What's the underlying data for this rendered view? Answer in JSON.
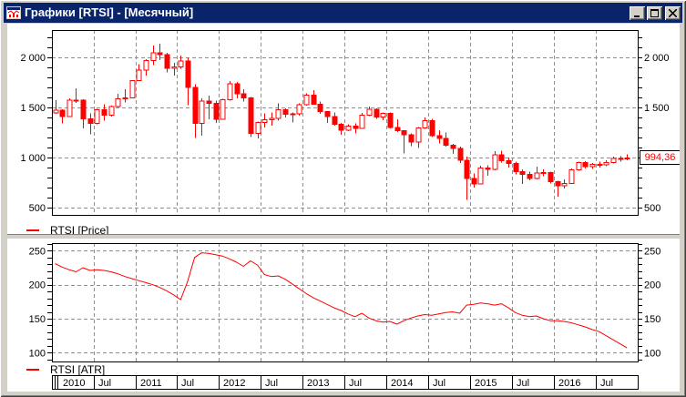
{
  "window": {
    "title": "Графики [RTSI] - [Месячный]"
  },
  "ui": {
    "price_legend": "RTSI [Price]",
    "atr_legend": "RTSI [ATR]",
    "price_tag": "994,36"
  },
  "colors": {
    "title_bar": "#0a246a",
    "chrome": "#d4d0c8",
    "series_red": "#ff0000",
    "grid_grey": "#909090",
    "axis_black": "#000000",
    "plot_background": "#ffffff"
  },
  "axes": {
    "price_left_labels": [
      {
        "v": 2000,
        "t": "2 000"
      },
      {
        "v": 1500,
        "t": "1 500"
      },
      {
        "v": 1000,
        "t": "1 000"
      },
      {
        "v": 500,
        "t": "500"
      }
    ],
    "price_right_labels": [
      {
        "v": 2000,
        "t": "2 000"
      },
      {
        "v": 1500,
        "t": "1 500"
      },
      {
        "v": 500,
        "t": "500"
      }
    ],
    "atr_labels": [
      {
        "v": 250,
        "t": "250"
      },
      {
        "v": 200,
        "t": "200"
      },
      {
        "v": 150,
        "t": "150"
      },
      {
        "v": 100,
        "t": "100"
      }
    ],
    "x_labels": [
      "2010",
      "Jul",
      "2011",
      "Jul",
      "2012",
      "Jul",
      "2013",
      "Jul",
      "2014",
      "Jul",
      "2015",
      "Jul",
      "2016",
      "Jul"
    ]
  },
  "chart_data": [
    {
      "type": "candlestick",
      "title": "RTSI [Price]",
      "interval": "monthly",
      "ylim": [
        430,
        2275
      ],
      "y_gridlines": [
        500,
        1000,
        1500,
        2000
      ],
      "x_gridlines_every_months": 6,
      "last_price": 994.36,
      "columns": [
        "month",
        "open",
        "high",
        "low",
        "close"
      ],
      "rows": [
        [
          "2010-01",
          1445,
          1575,
          1435,
          1474
        ],
        [
          "2010-02",
          1474,
          1480,
          1340,
          1410
        ],
        [
          "2010-03",
          1410,
          1590,
          1405,
          1572
        ],
        [
          "2010-04",
          1572,
          1690,
          1545,
          1573
        ],
        [
          "2010-05",
          1573,
          1580,
          1290,
          1385
        ],
        [
          "2010-06",
          1385,
          1440,
          1230,
          1339
        ],
        [
          "2010-07",
          1339,
          1485,
          1330,
          1479
        ],
        [
          "2010-08",
          1479,
          1530,
          1370,
          1421
        ],
        [
          "2010-09",
          1421,
          1520,
          1410,
          1507
        ],
        [
          "2010-10",
          1507,
          1635,
          1500,
          1587
        ],
        [
          "2010-11",
          1587,
          1680,
          1550,
          1597
        ],
        [
          "2010-12",
          1597,
          1775,
          1590,
          1770
        ],
        [
          "2011-01",
          1770,
          1930,
          1765,
          1871
        ],
        [
          "2011-02",
          1871,
          1980,
          1820,
          1969
        ],
        [
          "2011-03",
          1969,
          2120,
          1925,
          2044
        ],
        [
          "2011-04",
          2044,
          2135,
          1975,
          2027
        ],
        [
          "2011-05",
          2027,
          2045,
          1850,
          1889
        ],
        [
          "2011-06",
          1889,
          1945,
          1820,
          1906
        ],
        [
          "2011-07",
          1906,
          2020,
          1885,
          1965
        ],
        [
          "2011-08",
          1965,
          1995,
          1525,
          1702
        ],
        [
          "2011-09",
          1702,
          1730,
          1195,
          1341
        ],
        [
          "2011-10",
          1341,
          1590,
          1217,
          1563
        ],
        [
          "2011-11",
          1563,
          1620,
          1380,
          1540
        ],
        [
          "2011-12",
          1540,
          1570,
          1345,
          1382
        ],
        [
          "2012-01",
          1382,
          1585,
          1380,
          1577
        ],
        [
          "2012-02",
          1577,
          1765,
          1570,
          1735
        ],
        [
          "2012-03",
          1735,
          1754,
          1590,
          1637
        ],
        [
          "2012-04",
          1637,
          1680,
          1560,
          1594
        ],
        [
          "2012-05",
          1594,
          1605,
          1206,
          1242
        ],
        [
          "2012-06",
          1242,
          1360,
          1190,
          1351
        ],
        [
          "2012-07",
          1351,
          1440,
          1300,
          1377
        ],
        [
          "2012-08",
          1377,
          1450,
          1320,
          1390
        ],
        [
          "2012-09",
          1390,
          1540,
          1370,
          1476
        ],
        [
          "2012-10",
          1476,
          1490,
          1400,
          1433
        ],
        [
          "2012-11",
          1433,
          1450,
          1350,
          1437
        ],
        [
          "2012-12",
          1437,
          1540,
          1420,
          1527
        ],
        [
          "2013-01",
          1527,
          1640,
          1520,
          1622
        ],
        [
          "2013-02",
          1622,
          1675,
          1530,
          1534
        ],
        [
          "2013-03",
          1534,
          1560,
          1435,
          1460
        ],
        [
          "2013-04",
          1460,
          1465,
          1345,
          1407
        ],
        [
          "2013-05",
          1407,
          1450,
          1320,
          1331
        ],
        [
          "2013-06",
          1331,
          1345,
          1227,
          1275
        ],
        [
          "2013-07",
          1275,
          1330,
          1265,
          1313
        ],
        [
          "2013-08",
          1313,
          1340,
          1241,
          1291
        ],
        [
          "2013-09",
          1291,
          1445,
          1285,
          1422
        ],
        [
          "2013-10",
          1422,
          1510,
          1415,
          1481
        ],
        [
          "2013-11",
          1481,
          1490,
          1385,
          1403
        ],
        [
          "2013-12",
          1403,
          1450,
          1375,
          1443
        ],
        [
          "2014-01",
          1443,
          1450,
          1290,
          1301
        ],
        [
          "2014-02",
          1301,
          1380,
          1255,
          1267
        ],
        [
          "2014-03",
          1267,
          1275,
          1040,
          1226
        ],
        [
          "2014-04",
          1226,
          1240,
          1115,
          1156
        ],
        [
          "2014-05",
          1156,
          1305,
          1095,
          1296
        ],
        [
          "2014-06",
          1296,
          1400,
          1285,
          1366
        ],
        [
          "2014-07",
          1366,
          1385,
          1205,
          1219
        ],
        [
          "2014-08",
          1219,
          1275,
          1140,
          1190
        ],
        [
          "2014-09",
          1190,
          1250,
          1110,
          1124
        ],
        [
          "2014-10",
          1124,
          1135,
          1035,
          1091
        ],
        [
          "2014-11",
          1091,
          1110,
          945,
          974
        ],
        [
          "2014-12",
          974,
          1010,
          578,
          791
        ],
        [
          "2015-01",
          791,
          840,
          700,
          737
        ],
        [
          "2015-02",
          737,
          920,
          730,
          897
        ],
        [
          "2015-03",
          897,
          925,
          820,
          880
        ],
        [
          "2015-04",
          880,
          1065,
          875,
          1029
        ],
        [
          "2015-05",
          1029,
          1070,
          950,
          970
        ],
        [
          "2015-06",
          970,
          1000,
          900,
          940
        ],
        [
          "2015-07",
          940,
          960,
          830,
          860
        ],
        [
          "2015-08",
          860,
          880,
          735,
          834
        ],
        [
          "2015-09",
          834,
          860,
          775,
          790
        ],
        [
          "2015-10",
          790,
          910,
          780,
          845
        ],
        [
          "2015-11",
          845,
          880,
          815,
          848
        ],
        [
          "2015-12",
          848,
          860,
          740,
          757
        ],
        [
          "2016-01",
          757,
          770,
          608,
          716
        ],
        [
          "2016-02",
          716,
          780,
          690,
          740
        ],
        [
          "2016-03",
          740,
          890,
          735,
          877
        ],
        [
          "2016-04",
          877,
          960,
          870,
          951
        ],
        [
          "2016-05",
          951,
          965,
          890,
          908
        ],
        [
          "2016-06",
          908,
          945,
          885,
          930
        ],
        [
          "2016-07",
          930,
          960,
          900,
          926
        ],
        [
          "2016-08",
          926,
          975,
          915,
          950
        ],
        [
          "2016-09",
          950,
          1010,
          940,
          990
        ],
        [
          "2016-10",
          990,
          1015,
          960,
          993
        ],
        [
          "2016-11",
          993,
          1030,
          975,
          994.36
        ]
      ]
    },
    {
      "type": "line",
      "title": "RTSI [ATR]",
      "interval": "monthly",
      "start_month": "2010-01",
      "ylim": [
        87,
        261
      ],
      "y_gridlines": [
        100,
        150,
        200,
        250
      ],
      "values": [
        231,
        226,
        222,
        219,
        225,
        221,
        222,
        221,
        219,
        216,
        212,
        209,
        206,
        203,
        200,
        196,
        191,
        185,
        178,
        205,
        240,
        247,
        246,
        244,
        242,
        238,
        233,
        227,
        235,
        229,
        215,
        212,
        213,
        208,
        201,
        194,
        187,
        181,
        176,
        171,
        166,
        162,
        157,
        153,
        158,
        151,
        147,
        145,
        146,
        142,
        147,
        151,
        154,
        156,
        155,
        157,
        159,
        160,
        158,
        170,
        171,
        173,
        172,
        170,
        172,
        166,
        159,
        155,
        153,
        154,
        150,
        147,
        147,
        146,
        144,
        141,
        138,
        134,
        131,
        125,
        119,
        113,
        107
      ]
    }
  ]
}
